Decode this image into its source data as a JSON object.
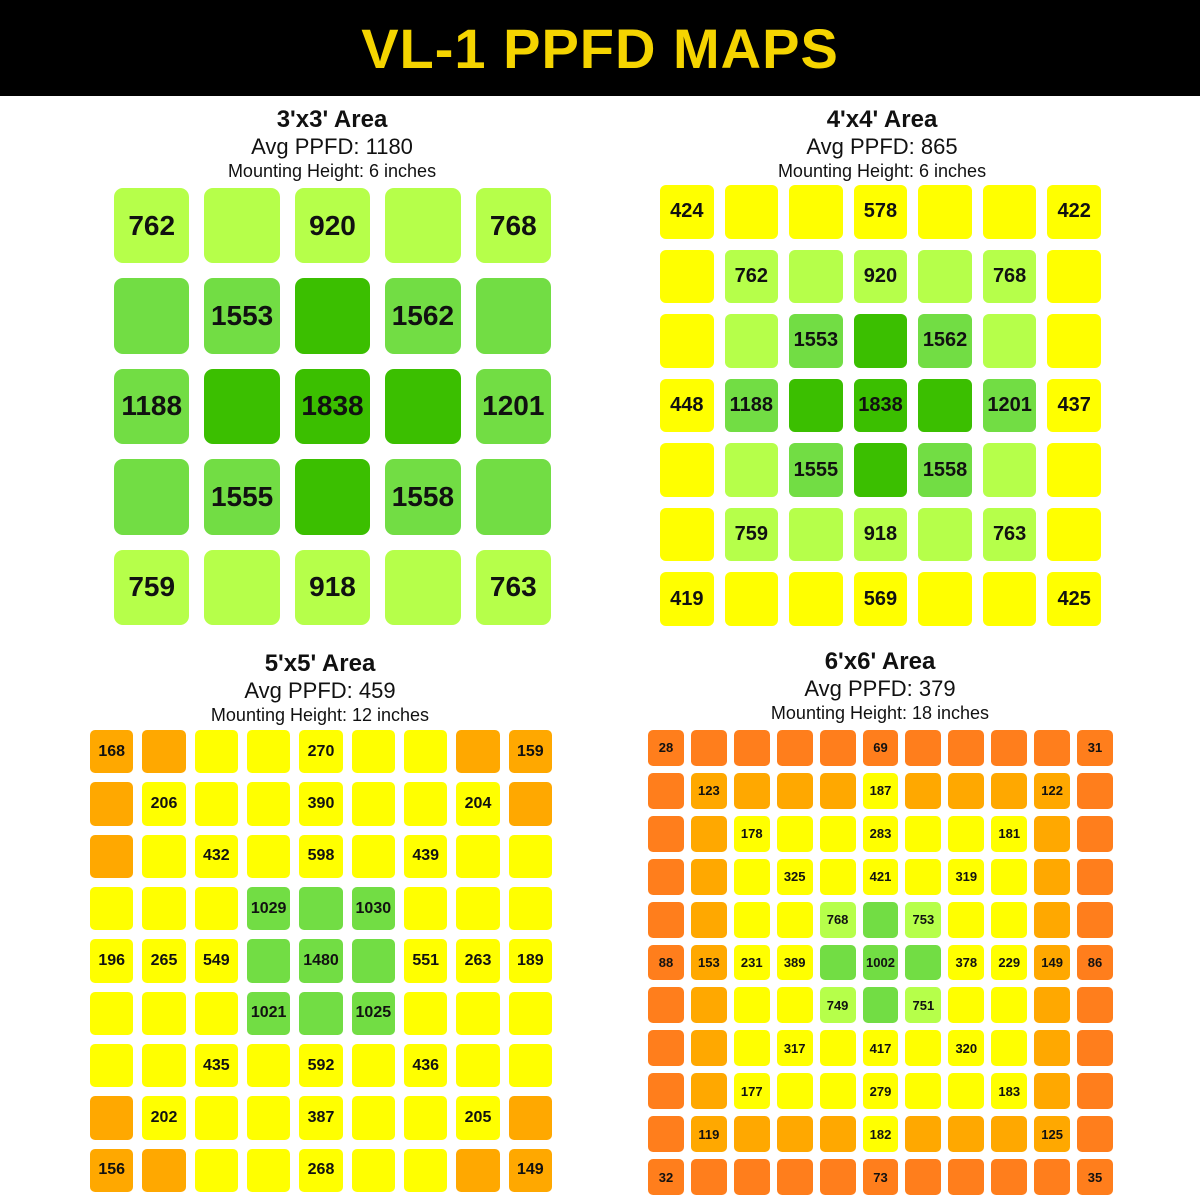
{
  "title": "VL-1 PPFD MAPS",
  "colors": {
    "header_bg": "#000000",
    "title": "#f5d400",
    "scale": [
      {
        "min": 0,
        "color": "#ff7e1c"
      },
      {
        "min": 100,
        "color": "#ffa800"
      },
      {
        "min": 170,
        "color": "#ffff00"
      },
      {
        "min": 700,
        "color": "#b6ff4a"
      },
      {
        "min": 1000,
        "color": "#72dd44"
      },
      {
        "min": 1700,
        "color": "#3bbf00"
      }
    ]
  },
  "chart_data": [
    {
      "type": "heatmap",
      "title": "3'x3' Area",
      "avg_text": "Avg PPFD: 1180",
      "mount_text": "Mounting Height: 6 inches",
      "size": 5,
      "rows": [
        [
          762,
          920,
          920,
          920,
          768
        ],
        [
          1190,
          1553,
          1838,
          1562,
          1195
        ],
        [
          1188,
          1838,
          1838,
          1838,
          1201
        ],
        [
          1190,
          1555,
          1838,
          1558,
          1195
        ],
        [
          759,
          918,
          918,
          918,
          763
        ]
      ],
      "labels": [
        [
          "762",
          "",
          "920",
          "",
          "768"
        ],
        [
          "",
          "1553",
          "",
          "1562",
          ""
        ],
        [
          "1188",
          "",
          "1838",
          "",
          "1201"
        ],
        [
          "",
          "1555",
          "",
          "1558",
          ""
        ],
        [
          "759",
          "",
          "918",
          "",
          "763"
        ]
      ]
    },
    {
      "type": "heatmap",
      "title": "4'x4' Area",
      "avg_text": "Avg PPFD: 865",
      "mount_text": "Mounting Height: 6 inches",
      "size": 7,
      "rows": [
        [
          424,
          578,
          578,
          578,
          578,
          578,
          422
        ],
        [
          440,
          762,
          920,
          920,
          920,
          768,
          440
        ],
        [
          440,
          920,
          1553,
          1838,
          1562,
          920,
          440
        ],
        [
          448,
          1188,
          1838,
          1838,
          1838,
          1201,
          437
        ],
        [
          440,
          920,
          1555,
          1838,
          1558,
          920,
          440
        ],
        [
          440,
          759,
          918,
          918,
          918,
          763,
          440
        ],
        [
          419,
          569,
          569,
          569,
          569,
          569,
          425
        ]
      ],
      "labels": [
        [
          "424",
          "",
          "",
          "578",
          "",
          "",
          "422"
        ],
        [
          "",
          "762",
          "",
          "920",
          "",
          "768",
          ""
        ],
        [
          "",
          "",
          "1553",
          "",
          "1562",
          "",
          ""
        ],
        [
          "448",
          "1188",
          "",
          "1838",
          "",
          "1201",
          "437"
        ],
        [
          "",
          "",
          "1555",
          "",
          "1558",
          "",
          ""
        ],
        [
          "",
          "759",
          "",
          "918",
          "",
          "763",
          ""
        ],
        [
          "419",
          "",
          "",
          "569",
          "",
          "",
          "425"
        ]
      ]
    },
    {
      "type": "heatmap",
      "title": "5'x5' Area",
      "avg_text": "Avg PPFD: 459",
      "mount_text": "Mounting Height: 12 inches",
      "size": 9,
      "rows": [
        [
          168,
          168,
          270,
          270,
          270,
          270,
          270,
          159,
          159
        ],
        [
          168,
          206,
          390,
          390,
          390,
          390,
          390,
          204,
          159
        ],
        [
          168,
          265,
          432,
          598,
          598,
          598,
          439,
          263,
          189
        ],
        [
          196,
          265,
          549,
          1029,
          1480,
          1030,
          551,
          263,
          189
        ],
        [
          196,
          265,
          549,
          1480,
          1480,
          1480,
          551,
          263,
          189
        ],
        [
          196,
          265,
          549,
          1021,
          1480,
          1025,
          551,
          263,
          189
        ],
        [
          196,
          265,
          435,
          592,
          592,
          592,
          436,
          263,
          189
        ],
        [
          156,
          202,
          387,
          387,
          387,
          387,
          387,
          205,
          149
        ],
        [
          156,
          156,
          268,
          268,
          268,
          268,
          268,
          149,
          149
        ]
      ],
      "labels": [
        [
          "168",
          "",
          "",
          "",
          "270",
          "",
          "",
          "",
          "159"
        ],
        [
          "",
          "206",
          "",
          "",
          "390",
          "",
          "",
          "204",
          ""
        ],
        [
          "",
          "",
          "432",
          "",
          "598",
          "",
          "439",
          "",
          ""
        ],
        [
          "",
          "",
          "",
          "1029",
          "",
          "1030",
          "",
          "",
          ""
        ],
        [
          "196",
          "265",
          "549",
          "",
          "1480",
          "",
          "551",
          "263",
          "189"
        ],
        [
          "",
          "",
          "",
          "1021",
          "",
          "1025",
          "",
          "",
          ""
        ],
        [
          "",
          "",
          "435",
          "",
          "592",
          "",
          "436",
          "",
          ""
        ],
        [
          "",
          "202",
          "",
          "",
          "387",
          "",
          "",
          "205",
          ""
        ],
        [
          "156",
          "",
          "",
          "",
          "268",
          "",
          "",
          "",
          "149"
        ]
      ]
    },
    {
      "type": "heatmap",
      "title": "6'x6' Area",
      "avg_text": "Avg PPFD: 379",
      "mount_text": "Mounting Height: 18 inches",
      "size": 11,
      "rows": [
        [
          28,
          28,
          28,
          28,
          28,
          69,
          31,
          31,
          31,
          31,
          31
        ],
        [
          50,
          123,
          123,
          123,
          123,
          187,
          122,
          122,
          122,
          122,
          50
        ],
        [
          50,
          123,
          178,
          178,
          178,
          283,
          181,
          181,
          181,
          122,
          50
        ],
        [
          50,
          123,
          178,
          325,
          325,
          421,
          319,
          319,
          181,
          122,
          50
        ],
        [
          50,
          153,
          231,
          389,
          768,
          1002,
          753,
          378,
          229,
          149,
          50
        ],
        [
          88,
          153,
          231,
          389,
          1002,
          1002,
          1002,
          378,
          229,
          149,
          86
        ],
        [
          50,
          153,
          231,
          389,
          749,
          1002,
          751,
          378,
          229,
          149,
          50
        ],
        [
          50,
          119,
          177,
          317,
          317,
          417,
          320,
          320,
          183,
          125,
          50
        ],
        [
          50,
          119,
          177,
          177,
          177,
          279,
          183,
          183,
          183,
          125,
          50
        ],
        [
          50,
          119,
          119,
          119,
          119,
          182,
          125,
          125,
          125,
          125,
          50
        ],
        [
          32,
          32,
          32,
          32,
          32,
          73,
          35,
          35,
          35,
          35,
          35
        ]
      ],
      "labels": [
        [
          "28",
          "",
          "",
          "",
          "",
          "69",
          "",
          "",
          "",
          "",
          "31"
        ],
        [
          "",
          "123",
          "",
          "",
          "",
          "187",
          "",
          "",
          "",
          "122",
          ""
        ],
        [
          "",
          "",
          "178",
          "",
          "",
          "283",
          "",
          "",
          "181",
          "",
          ""
        ],
        [
          "",
          "",
          "",
          "325",
          "",
          "421",
          "",
          "319",
          "",
          "",
          ""
        ],
        [
          "",
          "",
          "",
          "",
          "768",
          "",
          "753",
          "",
          "",
          "",
          ""
        ],
        [
          "88",
          "153",
          "231",
          "389",
          "",
          "1002",
          "",
          "378",
          "229",
          "149",
          "86"
        ],
        [
          "",
          "",
          "",
          "",
          "749",
          "",
          "751",
          "",
          "",
          "",
          ""
        ],
        [
          "",
          "",
          "",
          "317",
          "",
          "417",
          "",
          "320",
          "",
          "",
          ""
        ],
        [
          "",
          "",
          "177",
          "",
          "",
          "279",
          "",
          "",
          "183",
          "",
          ""
        ],
        [
          "",
          "119",
          "",
          "",
          "",
          "182",
          "",
          "",
          "",
          "125",
          ""
        ],
        [
          "32",
          "",
          "",
          "",
          "",
          "73",
          "",
          "",
          "",
          "",
          "35"
        ]
      ]
    }
  ]
}
